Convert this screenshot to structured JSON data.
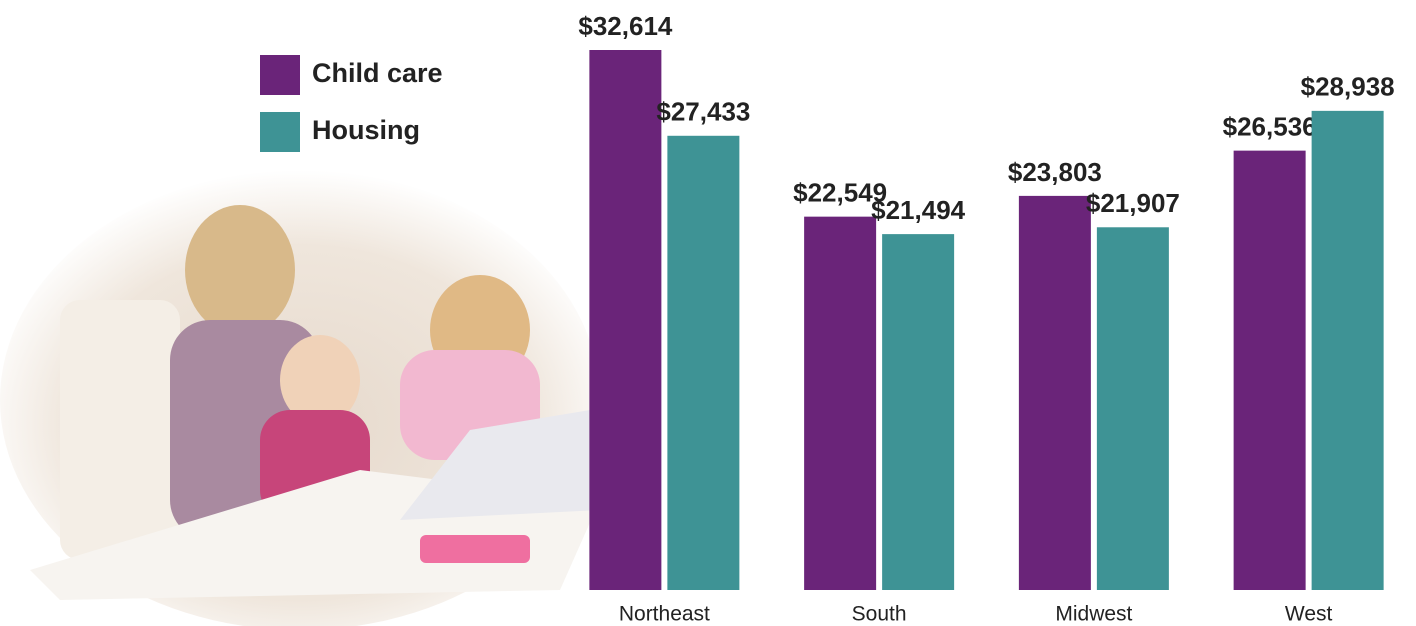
{
  "chart_data": {
    "type": "bar",
    "categories": [
      "Northeast",
      "South",
      "Midwest",
      "West"
    ],
    "series": [
      {
        "name": "Child care",
        "color": "#6a2479",
        "values": [
          32614,
          22549,
          23803,
          26536
        ],
        "value_labels": [
          "$32,614",
          "$22,549",
          "$23,803",
          "$26,536"
        ]
      },
      {
        "name": "Housing",
        "color": "#3e9395",
        "values": [
          27433,
          21494,
          21907,
          28938
        ],
        "value_labels": [
          "$27,433",
          "$21,494",
          "$21,907",
          "$28,938"
        ]
      }
    ]
  }
}
